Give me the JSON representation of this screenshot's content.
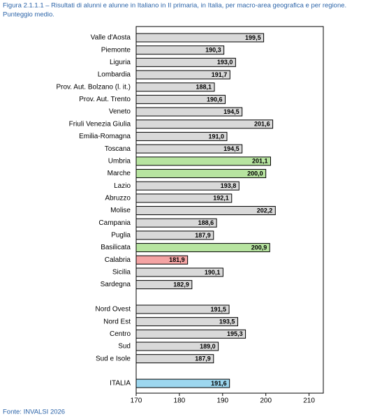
{
  "chart_data": {
    "type": "bar",
    "orientation": "horizontal",
    "title": "Figura 2.1.1.1 – Risultati di alunni e alunne in Italiano in II primaria, in Italia, per macro-area geografica e per regione.",
    "subtitle": "Punteggio medio.",
    "source": "Fonte: INVALSI 2026",
    "categories": [
      "Valle d'Aosta",
      "Piemonte",
      "Liguria",
      "Lombardia",
      "Prov. Aut. Bolzano (l. it.)",
      "Prov. Aut. Trento",
      "Veneto",
      "Friuli Venezia Giulia",
      "Emilia-Romagna",
      "Toscana",
      "Umbria",
      "Marche",
      "Lazio",
      "Abruzzo",
      "Molise",
      "Campania",
      "Puglia",
      "Basilicata",
      "Calabria",
      "Sicilia",
      "Sardegna",
      null,
      "Nord Ovest",
      "Nord Est",
      "Centro",
      "Sud",
      "Sud e Isole",
      null,
      "ITALIA"
    ],
    "values": [
      199.5,
      190.3,
      193.0,
      191.7,
      188.1,
      190.6,
      194.5,
      201.6,
      191.0,
      194.5,
      201.1,
      200.0,
      193.8,
      192.1,
      202.2,
      188.6,
      187.9,
      200.9,
      181.9,
      190.1,
      182.9,
      null,
      191.5,
      193.5,
      195.3,
      189.0,
      187.9,
      null,
      191.6
    ],
    "value_labels": [
      "199,5",
      "190,3",
      "193,0",
      "191,7",
      "188,1",
      "190,6",
      "194,5",
      "201,6",
      "191,0",
      "194,5",
      "201,1",
      "200,0",
      "193,8",
      "192,1",
      "202,2",
      "188,6",
      "187,9",
      "200,9",
      "181,9",
      "190,1",
      "182,9",
      null,
      "191,5",
      "193,5",
      "195,3",
      "189,0",
      "187,9",
      null,
      "191,6"
    ],
    "colors": [
      "#d9d9d9",
      "#d9d9d9",
      "#d9d9d9",
      "#d9d9d9",
      "#d9d9d9",
      "#d9d9d9",
      "#d9d9d9",
      "#d9d9d9",
      "#d9d9d9",
      "#d9d9d9",
      "#b7e4a0",
      "#b7e4a0",
      "#d9d9d9",
      "#d9d9d9",
      "#d9d9d9",
      "#d9d9d9",
      "#d9d9d9",
      "#b7e4a0",
      "#f4a3a3",
      "#d9d9d9",
      "#d9d9d9",
      null,
      "#d9d9d9",
      "#d9d9d9",
      "#d9d9d9",
      "#d9d9d9",
      "#d9d9d9",
      null,
      "#9dd7ef"
    ],
    "xlim": [
      170,
      213.3
    ],
    "xticks": [
      170,
      180,
      190,
      200,
      210
    ]
  }
}
